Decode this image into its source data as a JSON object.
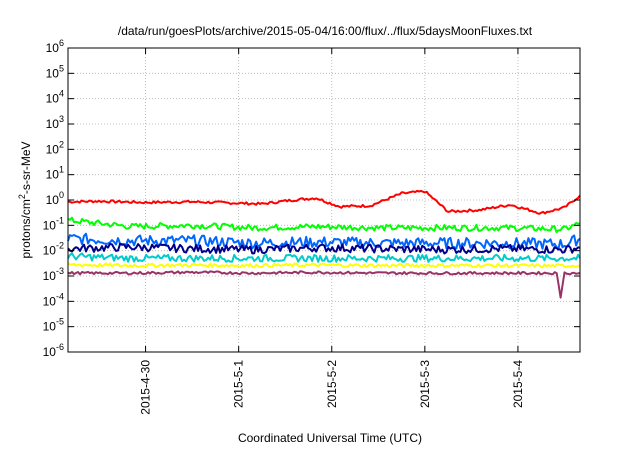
{
  "chart_data": {
    "type": "line",
    "title": "/data/run/goesPlots/archive/2015-05-04/16:00/flux/../flux/5daysMoonFluxes.txt",
    "xlabel": "Coordinated Universal Time (UTC)",
    "ylabel_parts": [
      "protons/cm",
      "2",
      "-s-sr-MeV"
    ],
    "y_scale": "log",
    "ylim_exponent": [
      -6,
      6
    ],
    "y_ticks": [
      {
        "base": "10",
        "exp": "-6"
      },
      {
        "base": "10",
        "exp": "-5"
      },
      {
        "base": "10",
        "exp": "-4"
      },
      {
        "base": "10",
        "exp": "-3"
      },
      {
        "base": "10",
        "exp": "-2"
      },
      {
        "base": "10",
        "exp": "-1"
      },
      {
        "base": "10",
        "exp": "0"
      },
      {
        "base": "10",
        "exp": "1"
      },
      {
        "base": "10",
        "exp": "2"
      },
      {
        "base": "10",
        "exp": "3"
      },
      {
        "base": "10",
        "exp": "4"
      },
      {
        "base": "10",
        "exp": "5"
      },
      {
        "base": "10",
        "exp": "6"
      }
    ],
    "x_start": "2015-04-29 04:00",
    "x_end": "2015-05-04 16:00",
    "x_ticks": [
      "2015-4-30",
      "2015-5-1",
      "2015-5-2",
      "2015-5-3",
      "2015-5-4"
    ],
    "x_tick_dates": [
      "2015-04-30",
      "2015-05-01",
      "2015-05-02",
      "2015-05-03",
      "2015-05-04"
    ],
    "grid": true,
    "legend": "none",
    "series": [
      {
        "color": "#ff0000",
        "x": [
          "2015-04-29 04:00",
          "2015-04-29 12:00",
          "2015-04-30 00:00",
          "2015-04-30 12:00",
          "2015-05-01 00:00",
          "2015-05-01 06:00",
          "2015-05-01 14:00",
          "2015-05-01 20:00",
          "2015-05-02 02:00",
          "2015-05-02 10:00",
          "2015-05-02 18:00",
          "2015-05-03 00:00",
          "2015-05-03 06:00",
          "2015-05-03 14:00",
          "2015-05-03 22:00",
          "2015-05-04 06:00",
          "2015-05-04 12:00",
          "2015-05-04 16:00"
        ],
        "values": [
          0.85,
          0.9,
          0.8,
          0.85,
          0.75,
          0.7,
          1.0,
          1.2,
          0.55,
          0.6,
          1.8,
          2.2,
          0.35,
          0.4,
          0.65,
          0.3,
          0.5,
          1.5
        ]
      },
      {
        "color": "#00ff00",
        "x": [
          "2015-04-29 04:00",
          "2015-04-29 20:00",
          "2015-04-30 12:00",
          "2015-05-01 04:00",
          "2015-05-01 20:00",
          "2015-05-02 12:00",
          "2015-05-03 04:00",
          "2015-05-03 20:00",
          "2015-05-04 12:00",
          "2015-05-04 16:00"
        ],
        "values": [
          0.16,
          0.09,
          0.1,
          0.08,
          0.09,
          0.08,
          0.08,
          0.08,
          0.07,
          0.12
        ]
      },
      {
        "color": "#0066ff",
        "x": [
          "2015-04-29 04:00",
          "2015-04-29 20:00",
          "2015-04-30 12:00",
          "2015-05-01 04:00",
          "2015-05-01 20:00",
          "2015-05-02 12:00",
          "2015-05-03 04:00",
          "2015-05-03 20:00",
          "2015-05-04 12:00",
          "2015-05-04 16:00"
        ],
        "values": [
          0.03,
          0.025,
          0.025,
          0.02,
          0.022,
          0.02,
          0.02,
          0.02,
          0.018,
          0.03
        ]
      },
      {
        "color": "#00008b",
        "x": [
          "2015-04-29 04:00",
          "2015-04-29 20:00",
          "2015-04-30 12:00",
          "2015-05-01 04:00",
          "2015-05-01 20:00",
          "2015-05-02 12:00",
          "2015-05-03 04:00",
          "2015-05-03 20:00",
          "2015-05-04 12:00",
          "2015-05-04 16:00"
        ],
        "values": [
          0.012,
          0.014,
          0.012,
          0.011,
          0.013,
          0.012,
          0.011,
          0.012,
          0.011,
          0.013
        ]
      },
      {
        "color": "#00cccc",
        "x": [
          "2015-04-29 04:00",
          "2015-04-29 20:00",
          "2015-04-30 12:00",
          "2015-05-01 04:00",
          "2015-05-01 20:00",
          "2015-05-02 12:00",
          "2015-05-03 04:00",
          "2015-05-03 20:00",
          "2015-05-04 12:00",
          "2015-05-04 16:00"
        ],
        "values": [
          0.006,
          0.005,
          0.005,
          0.005,
          0.005,
          0.005,
          0.005,
          0.005,
          0.005,
          0.005
        ]
      },
      {
        "color": "#ffff00",
        "x": [
          "2015-04-29 04:00",
          "2015-04-29 20:00",
          "2015-04-30 12:00",
          "2015-05-01 04:00",
          "2015-05-01 20:00",
          "2015-05-02 12:00",
          "2015-05-03 04:00",
          "2015-05-03 20:00",
          "2015-05-04 12:00",
          "2015-05-04 16:00"
        ],
        "values": [
          0.0028,
          0.0026,
          0.0027,
          0.0026,
          0.0027,
          0.0026,
          0.0026,
          0.0026,
          0.0025,
          0.0027
        ]
      },
      {
        "color": "#993366",
        "x": [
          "2015-04-29 04:00",
          "2015-04-29 20:00",
          "2015-04-30 12:00",
          "2015-05-01 04:00",
          "2015-05-01 20:00",
          "2015-05-02 12:00",
          "2015-05-03 04:00",
          "2015-05-03 20:00",
          "2015-05-04 10:00",
          "2015-05-04 11:00",
          "2015-05-04 12:00",
          "2015-05-04 16:00"
        ],
        "values": [
          0.0013,
          0.0013,
          0.0014,
          0.0013,
          0.0014,
          0.0013,
          0.0013,
          0.0013,
          0.0013,
          0.00014,
          0.0013,
          0.0013
        ]
      }
    ]
  }
}
